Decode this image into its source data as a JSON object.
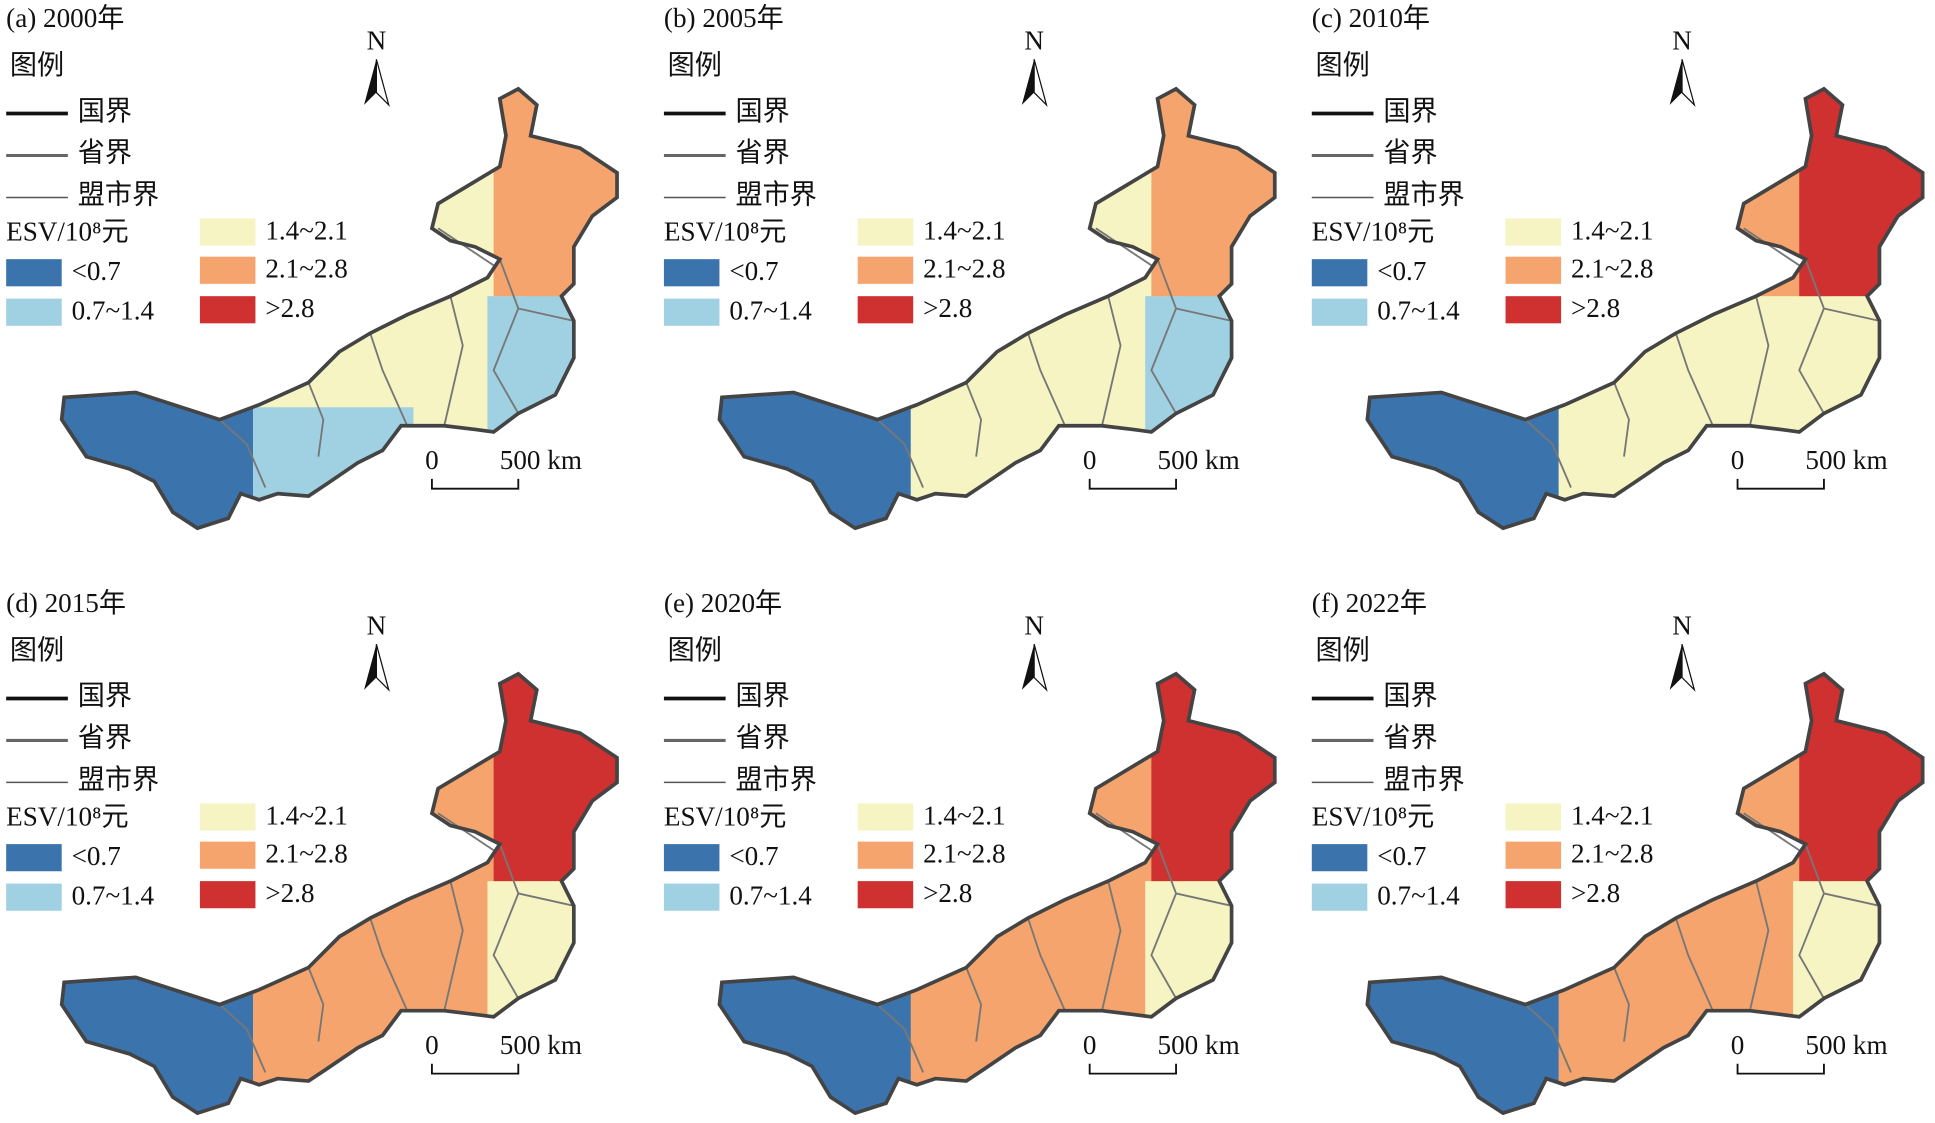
{
  "panels": [
    {
      "title": "(a) 2000年",
      "legend_title": "图例",
      "boundaries": [
        "国界",
        "省界",
        "盟市界"
      ],
      "esv_label": "ESV/10⁸元",
      "classes": [
        {
          "label": "<0.7",
          "color": "#3b74ad"
        },
        {
          "label": "0.7~1.4",
          "color": "#9fd1e2"
        },
        {
          "label": "1.4~2.1",
          "color": "#f6f4c2"
        },
        {
          "label": "2.1~2.8",
          "color": "#f4a46c"
        },
        {
          "label": ">2.8",
          "color": "#cf3030"
        }
      ],
      "north": "N",
      "scale": [
        "0",
        "500 km"
      ]
    },
    {
      "title": "(b) 2005年",
      "legend_title": "图例",
      "boundaries": [
        "国界",
        "省界",
        "盟市界"
      ],
      "esv_label": "ESV/10⁸元",
      "classes": [
        {
          "label": "<0.7",
          "color": "#3b74ad"
        },
        {
          "label": "0.7~1.4",
          "color": "#9fd1e2"
        },
        {
          "label": "1.4~2.1",
          "color": "#f6f4c2"
        },
        {
          "label": "2.1~2.8",
          "color": "#f4a46c"
        },
        {
          "label": ">2.8",
          "color": "#cf3030"
        }
      ],
      "north": "N",
      "scale": [
        "0",
        "500 km"
      ]
    },
    {
      "title": "(c) 2010年",
      "legend_title": "图例",
      "boundaries": [
        "国界",
        "省界",
        "盟市界"
      ],
      "esv_label": "ESV/10⁸元",
      "classes": [
        {
          "label": "<0.7",
          "color": "#3b74ad"
        },
        {
          "label": "0.7~1.4",
          "color": "#9fd1e2"
        },
        {
          "label": "1.4~2.1",
          "color": "#f6f4c2"
        },
        {
          "label": "2.1~2.8",
          "color": "#f4a46c"
        },
        {
          "label": ">2.8",
          "color": "#cf3030"
        }
      ],
      "north": "N",
      "scale": [
        "0",
        "500 km"
      ]
    },
    {
      "title": "(d) 2015年",
      "legend_title": "图例",
      "boundaries": [
        "国界",
        "省界",
        "盟市界"
      ],
      "esv_label": "ESV/10⁸元",
      "classes": [
        {
          "label": "<0.7",
          "color": "#3b74ad"
        },
        {
          "label": "0.7~1.4",
          "color": "#9fd1e2"
        },
        {
          "label": "1.4~2.1",
          "color": "#f6f4c2"
        },
        {
          "label": "2.1~2.8",
          "color": "#f4a46c"
        },
        {
          "label": ">2.8",
          "color": "#cf3030"
        }
      ],
      "north": "N",
      "scale": [
        "0",
        "500 km"
      ]
    },
    {
      "title": "(e) 2020年",
      "legend_title": "图例",
      "boundaries": [
        "国界",
        "省界",
        "盟市界"
      ],
      "esv_label": "ESV/10⁸元",
      "classes": [
        {
          "label": "<0.7",
          "color": "#3b74ad"
        },
        {
          "label": "0.7~1.4",
          "color": "#9fd1e2"
        },
        {
          "label": "1.4~2.1",
          "color": "#f6f4c2"
        },
        {
          "label": "2.1~2.8",
          "color": "#f4a46c"
        },
        {
          "label": ">2.8",
          "color": "#cf3030"
        }
      ],
      "north": "N",
      "scale": [
        "0",
        "500 km"
      ]
    },
    {
      "title": "(f) 2022年",
      "legend_title": "图例",
      "boundaries": [
        "国界",
        "省界",
        "盟市界"
      ],
      "esv_label": "ESV/10⁸元",
      "classes": [
        {
          "label": "<0.7",
          "color": "#3b74ad"
        },
        {
          "label": "0.7~1.4",
          "color": "#9fd1e2"
        },
        {
          "label": "1.4~2.1",
          "color": "#f6f4c2"
        },
        {
          "label": "2.1~2.8",
          "color": "#f4a46c"
        },
        {
          "label": ">2.8",
          "color": "#cf3030"
        }
      ],
      "north": "N",
      "scale": [
        "0",
        "500 km"
      ]
    }
  ]
}
